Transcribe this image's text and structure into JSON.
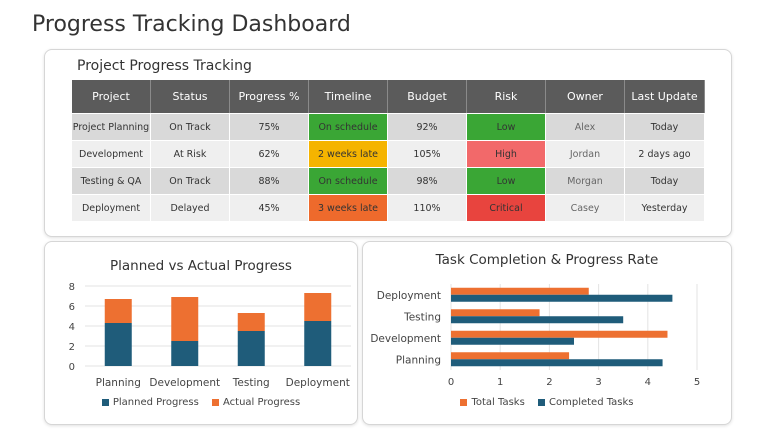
{
  "page": {
    "title": "Progress Tracking Dashboard"
  },
  "tracking": {
    "title": "Project Progress Tracking",
    "headers": [
      "Project",
      "Status",
      "Progress %",
      "Timeline",
      "Budget",
      "Risk",
      "Owner",
      "Last Update"
    ],
    "rows": [
      {
        "project": "Project Planning",
        "status": "On Track",
        "progress": "75%",
        "timeline": "On schedule",
        "budget": "92%",
        "risk": "Low",
        "owner": "Alex",
        "last_update": "Today"
      },
      {
        "project": "Development",
        "status": "At Risk",
        "progress": "62%",
        "timeline": "2 weeks late",
        "budget": "105%",
        "risk": "High",
        "owner": "Jordan",
        "last_update": "2 days ago"
      },
      {
        "project": "Testing & QA",
        "status": "On Track",
        "progress": "88%",
        "timeline": "On schedule",
        "budget": "98%",
        "risk": "Low",
        "owner": "Morgan",
        "last_update": "Today"
      },
      {
        "project": "Deployment",
        "status": "Delayed",
        "progress": "45%",
        "timeline": "3 weeks late",
        "budget": "110%",
        "risk": "Critical",
        "owner": "Casey",
        "last_update": "Yesterday"
      }
    ]
  },
  "colors": {
    "planned": "#1f5c7a",
    "actual": "#ed7031",
    "on_schedule": "#3aa635",
    "late": "#f5b400",
    "very_late": "#ee6a2c",
    "risk_low": "#3aa635",
    "risk_high": "#f2696a",
    "risk_critical": "#e8443e"
  },
  "chart_data": [
    {
      "type": "bar",
      "stacked": true,
      "title": "Planned vs Actual Progress",
      "categories": [
        "Planning",
        "Development",
        "Testing",
        "Deployment"
      ],
      "series": [
        {
          "name": "Planned Progress",
          "values": [
            4.3,
            2.5,
            3.5,
            4.5
          ]
        },
        {
          "name": "Actual Progress",
          "values": [
            2.4,
            4.4,
            1.8,
            2.8
          ]
        }
      ],
      "ylim": [
        0,
        8
      ],
      "yticks": [
        0,
        2,
        4,
        6,
        8
      ],
      "legend": "bottom"
    },
    {
      "type": "bar",
      "orientation": "horizontal",
      "title": "Task Completion & Progress Rate",
      "categories": [
        "Planning",
        "Development",
        "Testing",
        "Deployment"
      ],
      "series": [
        {
          "name": "Total Tasks",
          "values": [
            2.4,
            4.4,
            1.8,
            2.8
          ]
        },
        {
          "name": "Completed Tasks",
          "values": [
            4.3,
            2.5,
            3.5,
            4.5
          ]
        }
      ],
      "xlim": [
        0,
        5
      ],
      "xticks": [
        0,
        1,
        2,
        3,
        4,
        5
      ],
      "legend": "bottom"
    }
  ]
}
